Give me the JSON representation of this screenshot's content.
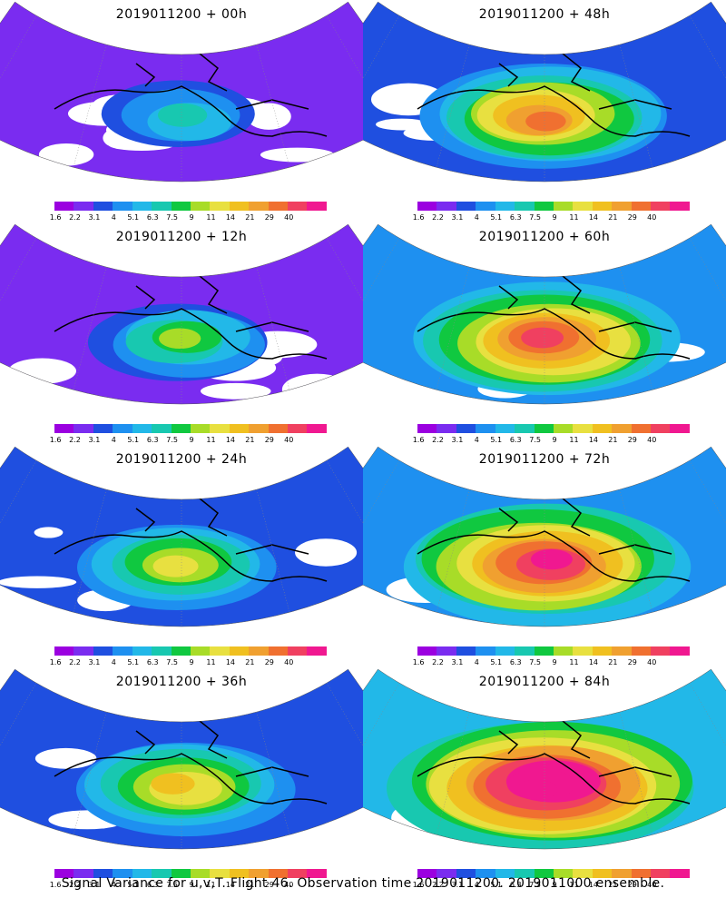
{
  "panels": [
    {
      "title": "2019011200 + 00h",
      "level": 0.15
    },
    {
      "title": "2019011200 + 48h",
      "level": 0.62
    },
    {
      "title": "2019011200 + 12h",
      "level": 0.28
    },
    {
      "title": "2019011200 + 60h",
      "level": 0.72
    },
    {
      "title": "2019011200 + 24h",
      "level": 0.38
    },
    {
      "title": "2019011200 + 72h",
      "level": 0.82
    },
    {
      "title": "2019011200 + 36h",
      "level": 0.48
    },
    {
      "title": "2019011200 + 84h",
      "level": 0.92
    }
  ],
  "colorbar": {
    "labels": [
      "1.6",
      "2.2",
      "3.1",
      "4",
      "5.1",
      "6.3",
      "7.5",
      "9",
      "11",
      "14",
      "21",
      "29",
      "40"
    ],
    "colors": [
      "#9b00e0",
      "#7a2cf0",
      "#1f4fe0",
      "#1e90f0",
      "#22b8e8",
      "#18c8b0",
      "#10c840",
      "#a8dc28",
      "#e8e040",
      "#f0c020",
      "#f0a030",
      "#f07030",
      "#f04060",
      "#f01890"
    ]
  },
  "footer": "Signal Variance for u,v,T. Flight 46. Observation time 2019011200. 2019011000 ensemble."
}
